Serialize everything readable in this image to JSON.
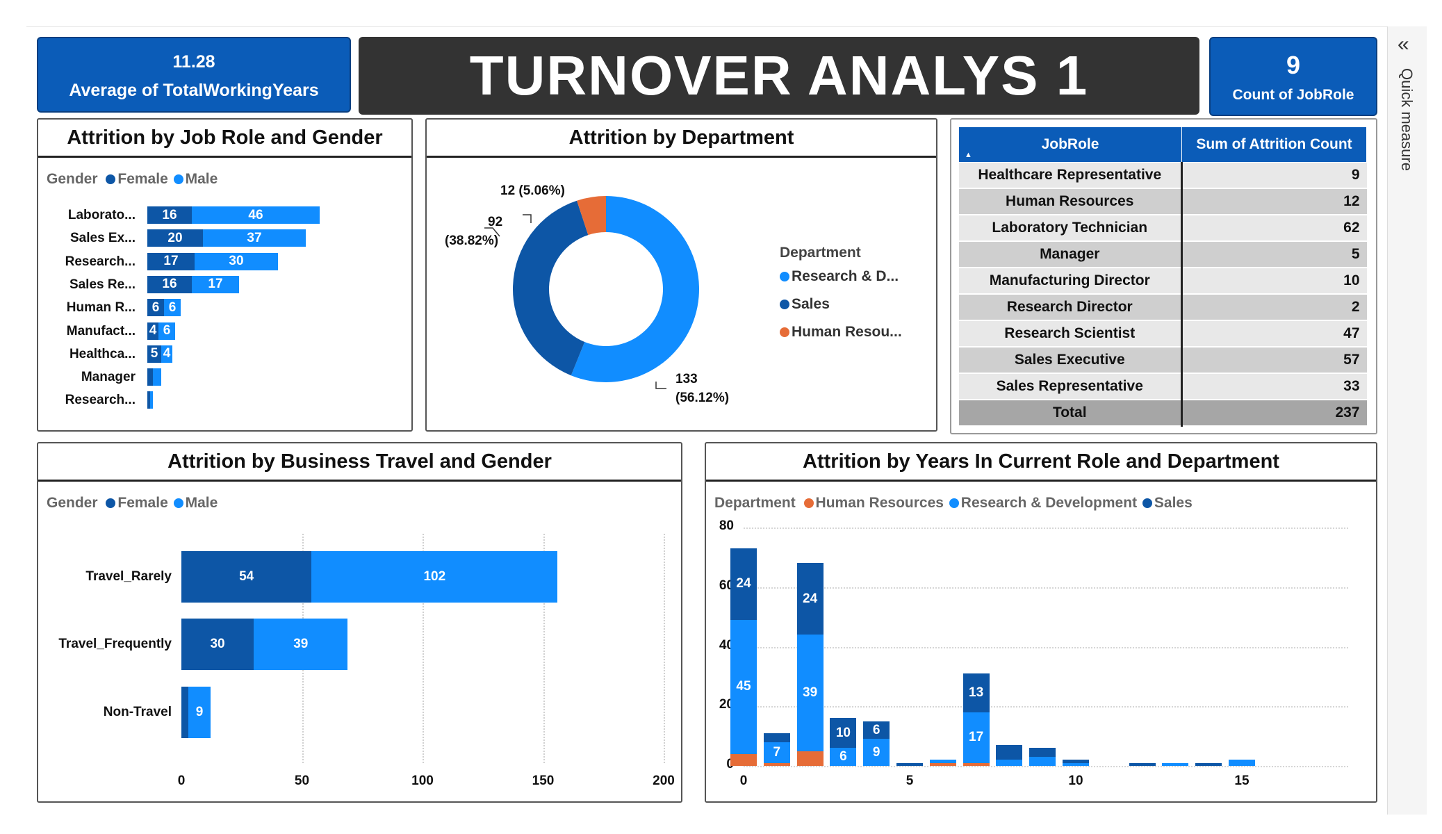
{
  "kpi_left": {
    "value": "11.28",
    "label": "Average of TotalWorkingYears"
  },
  "title": "TURNOVER ANALYS 1",
  "kpi_right": {
    "value": "9",
    "label": "Count of JobRole"
  },
  "sidebar": {
    "label": "Quick measure",
    "collapse_icon": "double-chevron-left-icon"
  },
  "colors": {
    "female": "#0d56a6",
    "male": "#118dff",
    "hr": "#e66c37",
    "rd": "#118dff",
    "sales": "#0d56a6",
    "kpi": "#0b5cb8",
    "title_bg": "#333333"
  },
  "job_role_gender": {
    "title": "Attrition by Job Role and Gender",
    "legend": {
      "label": "Gender",
      "female": "Female",
      "male": "Male"
    },
    "chart_data": {
      "type": "bar",
      "categories": [
        "Laborato...",
        "Sales Ex...",
        "Research...",
        "Sales Re...",
        "Human R...",
        "Manufact...",
        "Healthca...",
        "Manager",
        "Research..."
      ],
      "series": [
        {
          "name": "Female",
          "values": [
            16,
            20,
            17,
            16,
            6,
            4,
            5,
            2,
            1
          ]
        },
        {
          "name": "Male",
          "values": [
            46,
            37,
            30,
            17,
            6,
            6,
            4,
            3,
            1
          ]
        }
      ]
    }
  },
  "department": {
    "title": "Attrition by Department",
    "legend_title": "Department",
    "legend": [
      "Research & D...",
      "Sales",
      "Human Resou..."
    ],
    "chart_data": {
      "type": "pie",
      "categories": [
        "Research & D...",
        "Sales",
        "Human Resou..."
      ],
      "values": [
        133,
        92,
        12
      ],
      "labels": [
        "133\n(56.12%)",
        "92\n(38.82%)",
        "12 (5.06%)"
      ]
    },
    "label_rd_value": "133",
    "label_rd_pct": "(56.12%)",
    "label_sales_value": "92",
    "label_sales_pct": "(38.82%)",
    "label_hr": "12 (5.06%)"
  },
  "table": {
    "headers": [
      "JobRole",
      "Sum of Attrition Count"
    ],
    "rows": [
      {
        "role": "Healthcare Representative",
        "count": "9"
      },
      {
        "role": "Human Resources",
        "count": "12"
      },
      {
        "role": "Laboratory Technician",
        "count": "62"
      },
      {
        "role": "Manager",
        "count": "5"
      },
      {
        "role": "Manufacturing Director",
        "count": "10"
      },
      {
        "role": "Research Director",
        "count": "2"
      },
      {
        "role": "Research Scientist",
        "count": "47"
      },
      {
        "role": "Sales Executive",
        "count": "57"
      },
      {
        "role": "Sales Representative",
        "count": "33"
      }
    ],
    "total_label": "Total",
    "total_value": "237"
  },
  "business_travel": {
    "title": "Attrition by Business Travel and Gender",
    "legend": {
      "label": "Gender",
      "female": "Female",
      "male": "Male"
    },
    "chart_data": {
      "type": "bar",
      "categories": [
        "Travel_Rarely",
        "Travel_Frequently",
        "Non-Travel"
      ],
      "series": [
        {
          "name": "Female",
          "values": [
            54,
            30,
            3
          ]
        },
        {
          "name": "Male",
          "values": [
            102,
            39,
            9
          ]
        }
      ],
      "xlim": [
        0,
        200
      ],
      "xticks": [
        "0",
        "50",
        "100",
        "150",
        "200"
      ]
    }
  },
  "years_role": {
    "title": "Attrition by Years In Current Role and Department",
    "legend": {
      "label": "Department",
      "hr": "Human Resources",
      "rd": "Research & Development",
      "sales": "Sales"
    },
    "chart_data": {
      "type": "bar",
      "x": [
        0,
        1,
        2,
        3,
        4,
        5,
        6,
        7,
        8,
        9,
        10,
        12,
        13,
        14,
        15
      ],
      "series": [
        {
          "name": "Human Resources",
          "values": [
            4,
            1,
            5,
            0,
            0,
            0,
            1,
            1,
            0,
            0,
            0,
            0,
            0,
            0,
            0
          ]
        },
        {
          "name": "Research & Development",
          "values": [
            45,
            7,
            39,
            6,
            9,
            0,
            1,
            17,
            2,
            3,
            1,
            0,
            1,
            0,
            2
          ]
        },
        {
          "name": "Sales",
          "values": [
            24,
            3,
            24,
            10,
            6,
            1,
            0,
            13,
            5,
            3,
            1,
            1,
            0,
            1,
            0
          ]
        }
      ],
      "ylim": [
        0,
        80
      ],
      "yticks": [
        "0",
        "20",
        "40",
        "60",
        "80"
      ],
      "xticks": [
        "0",
        "5",
        "10",
        "15"
      ],
      "grid": true
    }
  }
}
